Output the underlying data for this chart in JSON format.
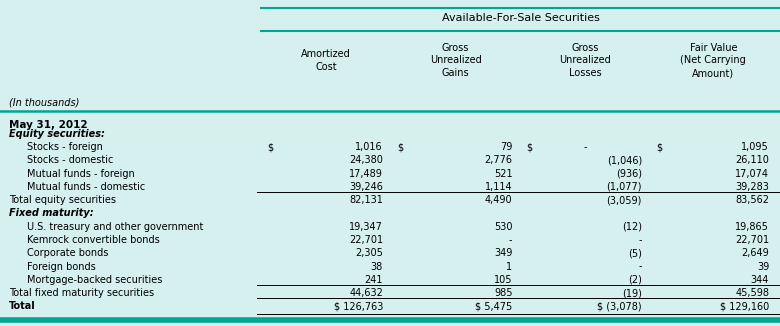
{
  "bg_color": "#d5f0ee",
  "teal": "#00a693",
  "title": "Available-For-Sale Securities",
  "col_headers": [
    "Amortized\nCost",
    "Gross\nUnrealized\nGains",
    "Gross\nUnrealized\nLosses",
    "Fair Value\n(Net Carrying\nAmount)"
  ],
  "row_label_header": "(In thousands)",
  "date_label": "May 31, 2012",
  "rows": [
    {
      "label": "Equity securities:",
      "indent": 0,
      "bold": true,
      "italic": true,
      "values": [
        "",
        "",
        "",
        ""
      ],
      "dollar": [
        false,
        false,
        false,
        false
      ]
    },
    {
      "label": "Stocks - foreign",
      "indent": 1,
      "bold": false,
      "italic": false,
      "values": [
        "1,016",
        "79",
        "-",
        "1,095"
      ],
      "dollar": [
        true,
        true,
        true,
        true
      ]
    },
    {
      "label": "Stocks - domestic",
      "indent": 1,
      "bold": false,
      "italic": false,
      "values": [
        "24,380",
        "2,776",
        "(1,046)",
        "26,110"
      ],
      "dollar": [
        false,
        false,
        false,
        false
      ]
    },
    {
      "label": "Mutual funds - foreign",
      "indent": 1,
      "bold": false,
      "italic": false,
      "values": [
        "17,489",
        "521",
        "(936)",
        "17,074"
      ],
      "dollar": [
        false,
        false,
        false,
        false
      ]
    },
    {
      "label": "Mutual funds - domestic",
      "indent": 1,
      "bold": false,
      "italic": false,
      "values": [
        "39,246",
        "1,114",
        "(1,077)",
        "39,283"
      ],
      "dollar": [
        false,
        false,
        false,
        false
      ]
    },
    {
      "label": "Total equity securities",
      "indent": 0,
      "bold": false,
      "italic": false,
      "values": [
        "82,131",
        "4,490",
        "(3,059)",
        "83,562"
      ],
      "dollar": [
        false,
        false,
        false,
        false
      ],
      "top_line": true
    },
    {
      "label": "Fixed maturity:",
      "indent": 0,
      "bold": true,
      "italic": true,
      "values": [
        "",
        "",
        "",
        ""
      ],
      "dollar": [
        false,
        false,
        false,
        false
      ]
    },
    {
      "label": "U.S. treasury and other government",
      "indent": 1,
      "bold": false,
      "italic": false,
      "values": [
        "19,347",
        "530",
        "(12)",
        "19,865"
      ],
      "dollar": [
        false,
        false,
        false,
        false
      ]
    },
    {
      "label": "Kemrock convertible bonds",
      "indent": 1,
      "bold": false,
      "italic": false,
      "values": [
        "22,701",
        "-",
        "-",
        "22,701"
      ],
      "dollar": [
        false,
        false,
        false,
        false
      ]
    },
    {
      "label": "Corporate bonds",
      "indent": 1,
      "bold": false,
      "italic": false,
      "values": [
        "2,305",
        "349",
        "(5)",
        "2,649"
      ],
      "dollar": [
        false,
        false,
        false,
        false
      ]
    },
    {
      "label": "Foreign bonds",
      "indent": 1,
      "bold": false,
      "italic": false,
      "values": [
        "38",
        "1",
        "-",
        "39"
      ],
      "dollar": [
        false,
        false,
        false,
        false
      ]
    },
    {
      "label": "Mortgage-backed securities",
      "indent": 1,
      "bold": false,
      "italic": false,
      "values": [
        "241",
        "105",
        "(2)",
        "344"
      ],
      "dollar": [
        false,
        false,
        false,
        false
      ]
    },
    {
      "label": "Total fixed maturity securities",
      "indent": 0,
      "bold": false,
      "italic": false,
      "values": [
        "44,632",
        "985",
        "(19)",
        "45,598"
      ],
      "dollar": [
        false,
        false,
        false,
        false
      ],
      "top_line": true
    },
    {
      "label": "Total",
      "indent": 0,
      "bold": true,
      "italic": false,
      "values": [
        "$ 126,763",
        "$ 5,475",
        "$ (3,078)",
        "$ 129,160"
      ],
      "dollar": [
        false,
        false,
        false,
        false
      ],
      "top_line": true,
      "bottom_line": true
    }
  ]
}
